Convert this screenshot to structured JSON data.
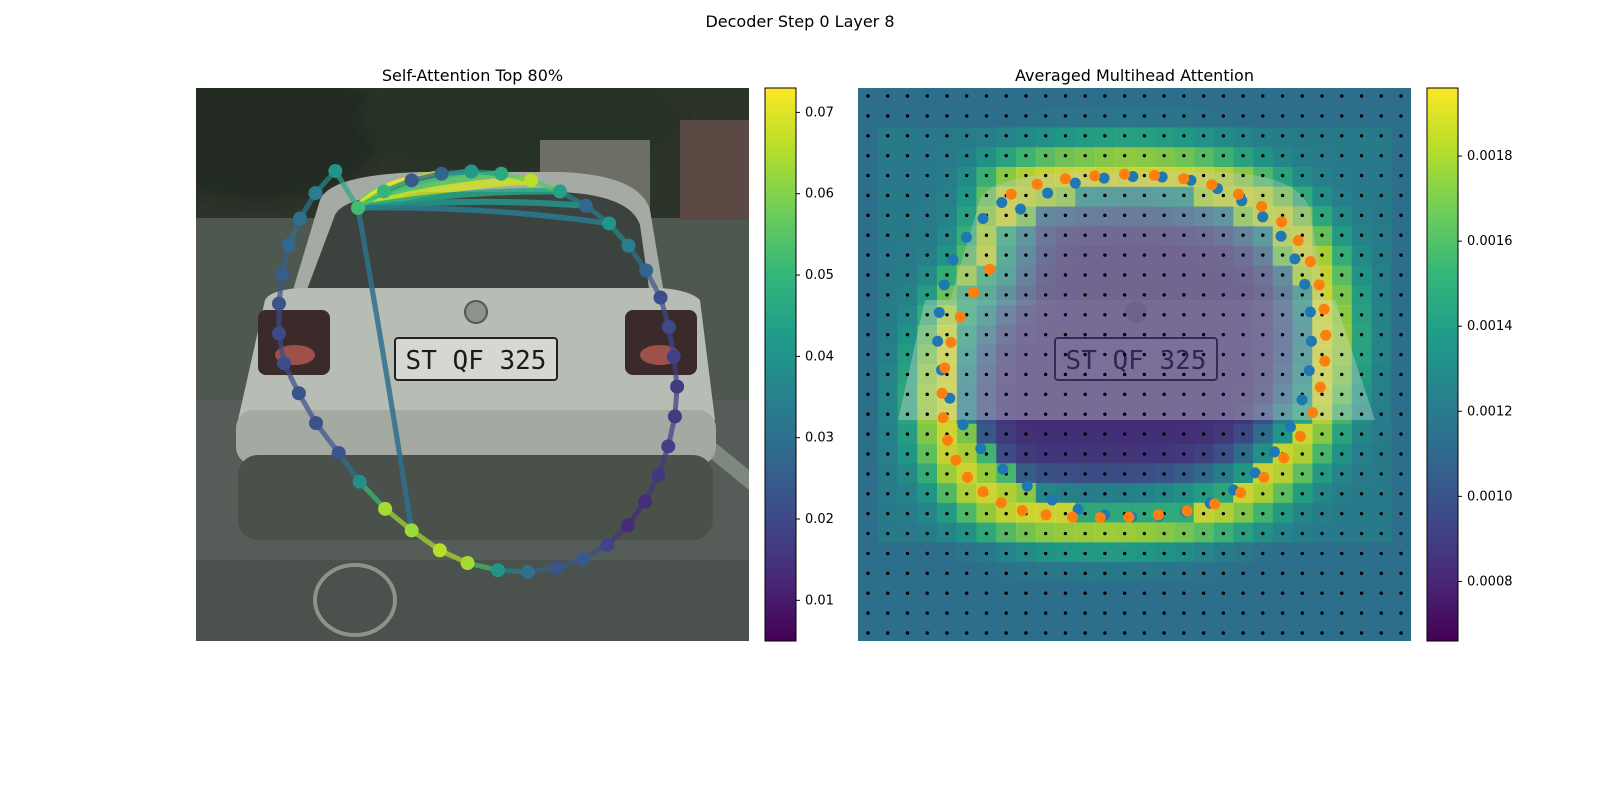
{
  "figure_title": "Decoder Step 0 Layer 8",
  "chart_data": [
    {
      "type": "scatter",
      "title": "Self-Attention Top 80%",
      "background": "photo of rear of a silver car with license plate",
      "colormap": "viridis",
      "colorbar": {
        "min": 0.005,
        "max": 0.073,
        "ticks": [
          "0.01",
          "0.02",
          "0.03",
          "0.04",
          "0.05",
          "0.06",
          "0.07"
        ]
      },
      "x": [
        0.293,
        0.34,
        0.39,
        0.444,
        0.498,
        0.552,
        0.606,
        0.658,
        0.705,
        0.747,
        0.782,
        0.814,
        0.84,
        0.855,
        0.864,
        0.87,
        0.866,
        0.854,
        0.836,
        0.812,
        0.781,
        0.744,
        0.7,
        0.652,
        0.6,
        0.546,
        0.491,
        0.441,
        0.39,
        0.342,
        0.296,
        0.258,
        0.217,
        0.186,
        0.159,
        0.15,
        0.15,
        0.156,
        0.168,
        0.188,
        0.216,
        0.252
      ],
      "y": [
        0.217,
        0.187,
        0.167,
        0.155,
        0.151,
        0.155,
        0.167,
        0.187,
        0.213,
        0.245,
        0.285,
        0.33,
        0.379,
        0.432,
        0.486,
        0.54,
        0.594,
        0.648,
        0.7,
        0.748,
        0.791,
        0.826,
        0.852,
        0.868,
        0.875,
        0.872,
        0.859,
        0.836,
        0.8,
        0.761,
        0.712,
        0.66,
        0.606,
        0.552,
        0.498,
        0.444,
        0.39,
        0.337,
        0.284,
        0.236,
        0.19,
        0.15
      ],
      "values": [
        0.052,
        0.05,
        0.024,
        0.027,
        0.042,
        0.046,
        0.066,
        0.044,
        0.028,
        0.04,
        0.034,
        0.027,
        0.021,
        0.02,
        0.018,
        0.017,
        0.017,
        0.018,
        0.016,
        0.014,
        0.013,
        0.019,
        0.024,
        0.023,
        0.03,
        0.04,
        0.064,
        0.066,
        0.063,
        0.064,
        0.039,
        0.023,
        0.022,
        0.022,
        0.021,
        0.02,
        0.022,
        0.025,
        0.028,
        0.03,
        0.034,
        0.04
      ],
      "source_point": 0,
      "attention_links": [
        {
          "to": 1,
          "weight": 0.058
        },
        {
          "to": 2,
          "weight": 0.072
        },
        {
          "to": 3,
          "weight": 0.065
        },
        {
          "to": 4,
          "weight": 0.05
        },
        {
          "to": 5,
          "weight": 0.055
        },
        {
          "to": 6,
          "weight": 0.068
        },
        {
          "to": 7,
          "weight": 0.045
        },
        {
          "to": 8,
          "weight": 0.04
        },
        {
          "to": 9,
          "weight": 0.033
        },
        {
          "to": 28,
          "weight": 0.03
        }
      ]
    },
    {
      "type": "heatmap",
      "title": "Averaged Multihead Attention",
      "background": "photo of rear of a silver car, overlaid with attention heatmap",
      "colormap": "viridis",
      "colorbar": {
        "min": 0.00066,
        "max": 0.00196,
        "ticks": [
          "0.0008",
          "0.0010",
          "0.0012",
          "0.0014",
          "0.0016",
          "0.0018"
        ]
      },
      "grid_points": {
        "rows": 28,
        "cols": 28,
        "color": "#000000"
      },
      "series": [
        {
          "color": "#1f77b4",
          "x": [
            0.294,
            0.343,
            0.393,
            0.445,
            0.497,
            0.55,
            0.602,
            0.65,
            0.694,
            0.732,
            0.765,
            0.79,
            0.808,
            0.818,
            0.82,
            0.816,
            0.803,
            0.782,
            0.753,
            0.718,
            0.679,
            0.637,
            0.592,
            0.544,
            0.495,
            0.446,
            0.398,
            0.351,
            0.306,
            0.262,
            0.222,
            0.19,
            0.166,
            0.151,
            0.144,
            0.147,
            0.156,
            0.172,
            0.196,
            0.226,
            0.26
          ],
          "y": [
            0.219,
            0.19,
            0.172,
            0.163,
            0.16,
            0.161,
            0.167,
            0.182,
            0.204,
            0.233,
            0.268,
            0.309,
            0.355,
            0.405,
            0.458,
            0.511,
            0.564,
            0.613,
            0.658,
            0.696,
            0.727,
            0.751,
            0.766,
            0.774,
            0.776,
            0.772,
            0.762,
            0.745,
            0.72,
            0.689,
            0.652,
            0.609,
            0.561,
            0.51,
            0.458,
            0.406,
            0.356,
            0.311,
            0.27,
            0.236,
            0.207
          ]
        },
        {
          "color": "#ff7f0e",
          "x": [
            0.277,
            0.324,
            0.375,
            0.428,
            0.482,
            0.536,
            0.589,
            0.64,
            0.688,
            0.73,
            0.766,
            0.796,
            0.818,
            0.834,
            0.843,
            0.846,
            0.844,
            0.836,
            0.822,
            0.8,
            0.77,
            0.734,
            0.692,
            0.645,
            0.595,
            0.543,
            0.49,
            0.438,
            0.388,
            0.34,
            0.297,
            0.259,
            0.226,
            0.198,
            0.177,
            0.162,
            0.154,
            0.152,
            0.157,
            0.168,
            0.185,
            0.209,
            0.238
          ],
          "y": [
            0.192,
            0.174,
            0.164,
            0.159,
            0.156,
            0.158,
            0.164,
            0.175,
            0.192,
            0.214,
            0.242,
            0.276,
            0.314,
            0.356,
            0.4,
            0.447,
            0.494,
            0.541,
            0.587,
            0.63,
            0.669,
            0.704,
            0.732,
            0.752,
            0.765,
            0.772,
            0.776,
            0.777,
            0.776,
            0.772,
            0.764,
            0.75,
            0.73,
            0.704,
            0.673,
            0.637,
            0.596,
            0.552,
            0.506,
            0.46,
            0.414,
            0.37,
            0.328
          ]
        }
      ]
    }
  ]
}
